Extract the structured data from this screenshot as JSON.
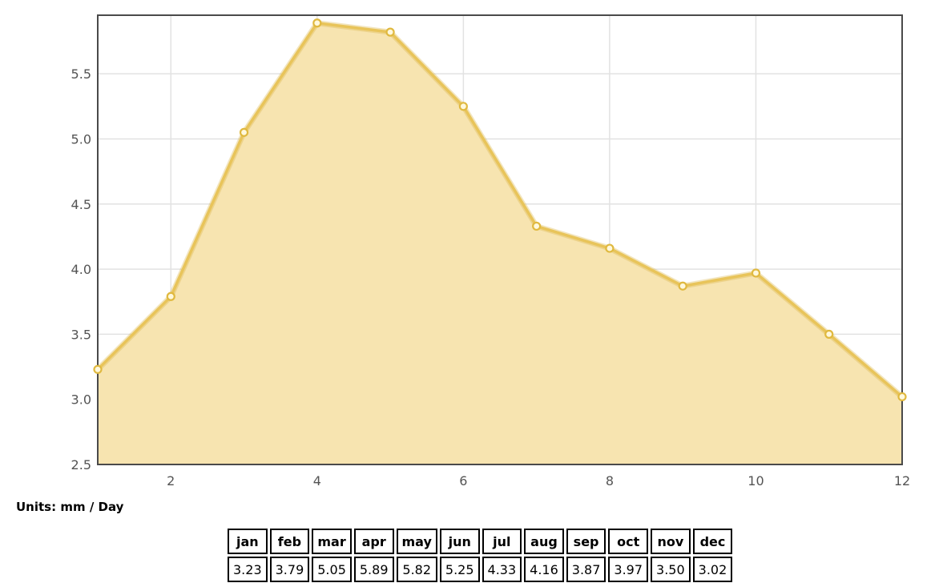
{
  "chart_data": {
    "type": "area",
    "title": "",
    "xlabel": "",
    "ylabel": "",
    "x": [
      1,
      2,
      3,
      4,
      5,
      6,
      7,
      8,
      9,
      10,
      11,
      12
    ],
    "series": [
      {
        "values": [
          3.23,
          3.79,
          5.05,
          5.89,
          5.82,
          5.25,
          4.33,
          4.16,
          3.87,
          3.97,
          3.5,
          3.02
        ]
      }
    ],
    "xlim": [
      1,
      12
    ],
    "ylim": [
      2.5,
      5.95
    ],
    "x_ticks": [
      "2",
      "4",
      "6",
      "8",
      "10",
      "12"
    ],
    "y_ticks": [
      "2.5",
      "3.0",
      "3.5",
      "4.0",
      "4.5",
      "5.0",
      "5.5"
    ],
    "grid": true,
    "colors": {
      "fill": "#f7e4b0",
      "line": "#e8c45a",
      "frame": "#4a4a4a",
      "grid": "#e2e2e2"
    }
  },
  "units": {
    "label": "Units:",
    "value": "mm / Day"
  },
  "table": {
    "headers": [
      "jan",
      "feb",
      "mar",
      "apr",
      "may",
      "jun",
      "jul",
      "aug",
      "sep",
      "oct",
      "nov",
      "dec"
    ],
    "values": [
      "3.23",
      "3.79",
      "5.05",
      "5.89",
      "5.82",
      "5.25",
      "4.33",
      "4.16",
      "3.87",
      "3.97",
      "3.50",
      "3.02"
    ]
  }
}
